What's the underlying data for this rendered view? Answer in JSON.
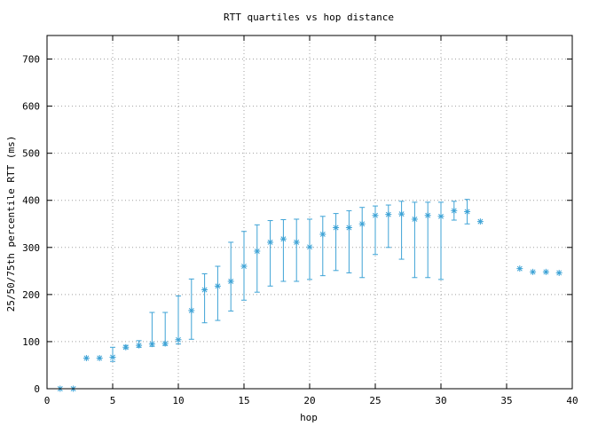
{
  "chart_data": {
    "type": "scatter",
    "title": "RTT quartiles vs hop distance",
    "xlabel": "hop",
    "ylabel": "25/50/75th percentile RTT (ms)",
    "xlim": [
      0,
      40
    ],
    "ylim": [
      0,
      750
    ],
    "xticks": [
      0,
      5,
      10,
      15,
      20,
      25,
      30,
      35,
      40
    ],
    "yticks": [
      0,
      100,
      200,
      300,
      400,
      500,
      600,
      700
    ],
    "grid": true,
    "color": "#3ea3d6",
    "points": [
      {
        "hop": 1,
        "p25": 0,
        "median": 0,
        "p75": 0
      },
      {
        "hop": 2,
        "p25": 0,
        "median": 0,
        "p75": 0
      },
      {
        "hop": 3,
        "p25": 65,
        "median": 65,
        "p75": 65
      },
      {
        "hop": 4,
        "p25": 65,
        "median": 65,
        "p75": 65
      },
      {
        "hop": 5,
        "p25": 58,
        "median": 67,
        "p75": 88
      },
      {
        "hop": 6,
        "p25": 85,
        "median": 88,
        "p75": 92
      },
      {
        "hop": 7,
        "p25": 88,
        "median": 92,
        "p75": 102
      },
      {
        "hop": 8,
        "p25": 90,
        "median": 95,
        "p75": 162
      },
      {
        "hop": 9,
        "p25": 92,
        "median": 96,
        "p75": 162
      },
      {
        "hop": 10,
        "p25": 95,
        "median": 104,
        "p75": 197
      },
      {
        "hop": 11,
        "p25": 105,
        "median": 166,
        "p75": 233
      },
      {
        "hop": 12,
        "p25": 140,
        "median": 210,
        "p75": 244
      },
      {
        "hop": 13,
        "p25": 145,
        "median": 218,
        "p75": 260
      },
      {
        "hop": 14,
        "p25": 165,
        "median": 228,
        "p75": 311
      },
      {
        "hop": 15,
        "p25": 188,
        "median": 260,
        "p75": 334
      },
      {
        "hop": 16,
        "p25": 205,
        "median": 292,
        "p75": 348
      },
      {
        "hop": 17,
        "p25": 218,
        "median": 311,
        "p75": 357
      },
      {
        "hop": 18,
        "p25": 228,
        "median": 318,
        "p75": 359
      },
      {
        "hop": 19,
        "p25": 228,
        "median": 311,
        "p75": 360
      },
      {
        "hop": 20,
        "p25": 232,
        "median": 301,
        "p75": 360
      },
      {
        "hop": 21,
        "p25": 240,
        "median": 328,
        "p75": 366
      },
      {
        "hop": 22,
        "p25": 251,
        "median": 342,
        "p75": 372
      },
      {
        "hop": 23,
        "p25": 246,
        "median": 342,
        "p75": 378
      },
      {
        "hop": 24,
        "p25": 236,
        "median": 350,
        "p75": 385
      },
      {
        "hop": 25,
        "p25": 285,
        "median": 368,
        "p75": 388
      },
      {
        "hop": 26,
        "p25": 300,
        "median": 370,
        "p75": 390
      },
      {
        "hop": 27,
        "p25": 275,
        "median": 371,
        "p75": 398
      },
      {
        "hop": 28,
        "p25": 236,
        "median": 360,
        "p75": 396
      },
      {
        "hop": 29,
        "p25": 236,
        "median": 368,
        "p75": 396
      },
      {
        "hop": 30,
        "p25": 232,
        "median": 366,
        "p75": 396
      },
      {
        "hop": 31,
        "p25": 358,
        "median": 378,
        "p75": 398
      },
      {
        "hop": 32,
        "p25": 350,
        "median": 376,
        "p75": 402
      },
      {
        "hop": 33,
        "p25": 355,
        "median": 355,
        "p75": 355
      },
      {
        "hop": 36,
        "p25": 255,
        "median": 255,
        "p75": 255
      },
      {
        "hop": 37,
        "p25": 248,
        "median": 248,
        "p75": 248
      },
      {
        "hop": 38,
        "p25": 248,
        "median": 248,
        "p75": 248
      },
      {
        "hop": 39,
        "p25": 246,
        "median": 246,
        "p75": 246
      }
    ]
  }
}
